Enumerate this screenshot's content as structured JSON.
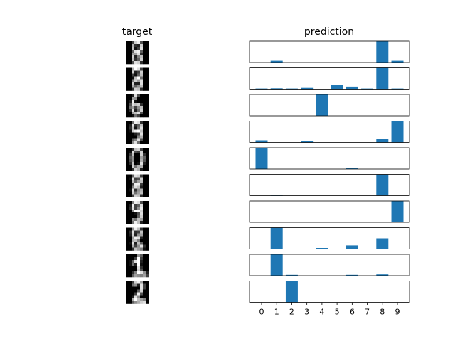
{
  "chart_data": [
    {
      "type": "heatmap",
      "title": "target",
      "description_of_panels": "10 stacked 8x8 grayscale digit images",
      "images": [
        [
          [
            0,
            0,
            4,
            13,
            15,
            5,
            0,
            0
          ],
          [
            0,
            0,
            11,
            3,
            2,
            13,
            0,
            0
          ],
          [
            0,
            0,
            12,
            1,
            4,
            14,
            0,
            0
          ],
          [
            0,
            0,
            6,
            14,
            15,
            6,
            0,
            0
          ],
          [
            0,
            0,
            10,
            10,
            14,
            3,
            0,
            0
          ],
          [
            0,
            0,
            13,
            2,
            8,
            12,
            0,
            0
          ],
          [
            0,
            0,
            12,
            3,
            6,
            13,
            0,
            0
          ],
          [
            0,
            0,
            5,
            14,
            13,
            3,
            0,
            0
          ]
        ],
        [
          [
            0,
            0,
            11,
            16,
            14,
            4,
            0,
            0
          ],
          [
            0,
            0,
            13,
            2,
            4,
            13,
            0,
            0
          ],
          [
            0,
            0,
            4,
            1,
            6,
            12,
            0,
            0
          ],
          [
            0,
            0,
            1,
            12,
            16,
            7,
            0,
            0
          ],
          [
            0,
            0,
            8,
            13,
            10,
            14,
            0,
            0
          ],
          [
            0,
            0,
            13,
            2,
            2,
            14,
            0,
            0
          ],
          [
            0,
            0,
            11,
            6,
            9,
            12,
            0,
            0
          ],
          [
            0,
            0,
            3,
            13,
            12,
            3,
            0,
            0
          ]
        ],
        [
          [
            0,
            0,
            2,
            14,
            5,
            0,
            0,
            0
          ],
          [
            0,
            0,
            10,
            9,
            0,
            0,
            0,
            0
          ],
          [
            0,
            2,
            15,
            1,
            0,
            0,
            0,
            0
          ],
          [
            0,
            5,
            14,
            12,
            13,
            3,
            0,
            0
          ],
          [
            0,
            7,
            10,
            4,
            9,
            12,
            0,
            0
          ],
          [
            0,
            3,
            14,
            2,
            7,
            13,
            0,
            0
          ],
          [
            0,
            0,
            10,
            12,
            14,
            5,
            0,
            0
          ],
          [
            0,
            0,
            1,
            7,
            4,
            0,
            0,
            0
          ]
        ],
        [
          [
            0,
            0,
            7,
            15,
            14,
            3,
            0,
            0
          ],
          [
            0,
            2,
            14,
            3,
            6,
            12,
            0,
            0
          ],
          [
            0,
            3,
            12,
            1,
            7,
            14,
            0,
            0
          ],
          [
            0,
            1,
            13,
            15,
            16,
            12,
            0,
            0
          ],
          [
            0,
            0,
            0,
            2,
            4,
            14,
            0,
            0
          ],
          [
            0,
            0,
            0,
            0,
            8,
            11,
            0,
            0
          ],
          [
            0,
            0,
            6,
            8,
            14,
            5,
            0,
            0
          ],
          [
            0,
            0,
            9,
            14,
            7,
            0,
            0,
            0
          ]
        ],
        [
          [
            0,
            0,
            3,
            12,
            13,
            4,
            0,
            0
          ],
          [
            0,
            1,
            14,
            5,
            4,
            13,
            0,
            0
          ],
          [
            0,
            4,
            12,
            0,
            0,
            13,
            3,
            0
          ],
          [
            0,
            6,
            9,
            0,
            0,
            10,
            6,
            0
          ],
          [
            0,
            5,
            9,
            0,
            0,
            11,
            5,
            0
          ],
          [
            0,
            3,
            12,
            0,
            1,
            14,
            2,
            0
          ],
          [
            0,
            0,
            13,
            7,
            11,
            11,
            0,
            0
          ],
          [
            0,
            0,
            3,
            13,
            11,
            2,
            0,
            0
          ]
        ],
        [
          [
            0,
            0,
            6,
            14,
            13,
            4,
            0,
            0
          ],
          [
            0,
            1,
            14,
            4,
            5,
            13,
            0,
            0
          ],
          [
            0,
            0,
            12,
            6,
            10,
            12,
            0,
            0
          ],
          [
            0,
            0,
            4,
            15,
            15,
            4,
            0,
            0
          ],
          [
            0,
            0,
            8,
            14,
            12,
            2,
            0,
            0
          ],
          [
            0,
            1,
            14,
            3,
            9,
            11,
            0,
            0
          ],
          [
            0,
            0,
            13,
            7,
            10,
            12,
            0,
            0
          ],
          [
            0,
            0,
            4,
            13,
            12,
            3,
            0,
            0
          ]
        ],
        [
          [
            0,
            0,
            8,
            15,
            14,
            5,
            0,
            0
          ],
          [
            0,
            2,
            15,
            4,
            6,
            14,
            0,
            0
          ],
          [
            0,
            3,
            14,
            4,
            9,
            15,
            0,
            0
          ],
          [
            0,
            0,
            9,
            16,
            16,
            13,
            0,
            0
          ],
          [
            0,
            0,
            0,
            1,
            5,
            14,
            0,
            0
          ],
          [
            0,
            0,
            0,
            0,
            6,
            13,
            0,
            0
          ],
          [
            0,
            0,
            9,
            7,
            12,
            10,
            0,
            0
          ],
          [
            0,
            0,
            7,
            15,
            12,
            2,
            0,
            0
          ]
        ],
        [
          [
            0,
            0,
            9,
            15,
            12,
            3,
            0,
            0
          ],
          [
            0,
            3,
            14,
            3,
            4,
            12,
            0,
            0
          ],
          [
            0,
            2,
            13,
            2,
            9,
            10,
            0,
            0
          ],
          [
            0,
            0,
            10,
            15,
            14,
            2,
            0,
            0
          ],
          [
            0,
            0,
            11,
            12,
            8,
            0,
            0,
            0
          ],
          [
            0,
            1,
            14,
            2,
            12,
            6,
            0,
            0
          ],
          [
            0,
            0,
            11,
            4,
            9,
            14,
            3,
            0
          ],
          [
            0,
            0,
            3,
            12,
            10,
            8,
            1,
            0
          ]
        ],
        [
          [
            0,
            0,
            0,
            0,
            9,
            6,
            0,
            0
          ],
          [
            0,
            0,
            0,
            4,
            16,
            4,
            0,
            0
          ],
          [
            0,
            1,
            6,
            14,
            16,
            2,
            0,
            0
          ],
          [
            0,
            1,
            7,
            2,
            16,
            1,
            0,
            0
          ],
          [
            0,
            0,
            0,
            0,
            14,
            3,
            0,
            0
          ],
          [
            0,
            0,
            0,
            0,
            13,
            5,
            0,
            0
          ],
          [
            0,
            0,
            3,
            8,
            16,
            14,
            9,
            2
          ],
          [
            0,
            0,
            6,
            10,
            9,
            8,
            10,
            4
          ]
        ],
        [
          [
            0,
            0,
            4,
            13,
            15,
            10,
            0,
            0
          ],
          [
            0,
            0,
            7,
            9,
            2,
            14,
            4,
            0
          ],
          [
            0,
            0,
            0,
            0,
            0,
            14,
            4,
            0
          ],
          [
            0,
            0,
            0,
            0,
            6,
            13,
            0,
            0
          ],
          [
            0,
            0,
            0,
            4,
            15,
            5,
            0,
            0
          ],
          [
            0,
            0,
            2,
            14,
            9,
            0,
            0,
            0
          ],
          [
            0,
            0,
            11,
            16,
            12,
            10,
            8,
            0
          ],
          [
            0,
            0,
            6,
            9,
            11,
            13,
            14,
            0
          ]
        ]
      ]
    },
    {
      "type": "bar",
      "title": "prediction",
      "categories": [
        "0",
        "1",
        "2",
        "3",
        "4",
        "5",
        "6",
        "7",
        "8",
        "9"
      ],
      "ylim": [
        0,
        1
      ],
      "series": [
        {
          "values": [
            0.0,
            0.08,
            0.0,
            0.0,
            0.0,
            0.0,
            0.0,
            0.0,
            1.0,
            0.08
          ]
        },
        {
          "values": [
            0.03,
            0.04,
            0.03,
            0.06,
            0.0,
            0.2,
            0.12,
            0.03,
            1.0,
            0.03
          ]
        },
        {
          "values": [
            0.0,
            0.0,
            0.0,
            0.0,
            1.0,
            0.0,
            0.0,
            0.0,
            0.0,
            0.0
          ]
        },
        {
          "values": [
            0.1,
            0.0,
            0.0,
            0.08,
            0.0,
            0.0,
            0.0,
            0.0,
            0.15,
            1.0
          ]
        },
        {
          "values": [
            1.0,
            0.0,
            0.0,
            0.0,
            0.0,
            0.0,
            0.04,
            0.0,
            0.0,
            0.0
          ]
        },
        {
          "values": [
            0.0,
            0.03,
            0.0,
            0.0,
            0.0,
            0.0,
            0.0,
            0.0,
            1.0,
            0.0
          ]
        },
        {
          "values": [
            0.0,
            0.0,
            0.0,
            0.0,
            0.0,
            0.0,
            0.0,
            0.0,
            0.0,
            1.0
          ]
        },
        {
          "values": [
            0.0,
            1.0,
            0.0,
            0.0,
            0.05,
            0.0,
            0.17,
            0.0,
            0.5,
            0.0
          ]
        },
        {
          "values": [
            0.0,
            1.0,
            0.04,
            0.0,
            0.0,
            0.0,
            0.04,
            0.0,
            0.06,
            0.0
          ]
        },
        {
          "values": [
            0.0,
            0.0,
            1.0,
            0.0,
            0.0,
            0.0,
            0.0,
            0.0,
            0.0,
            0.0
          ]
        }
      ],
      "bar_color": "#1f77b4",
      "grid": false
    }
  ]
}
